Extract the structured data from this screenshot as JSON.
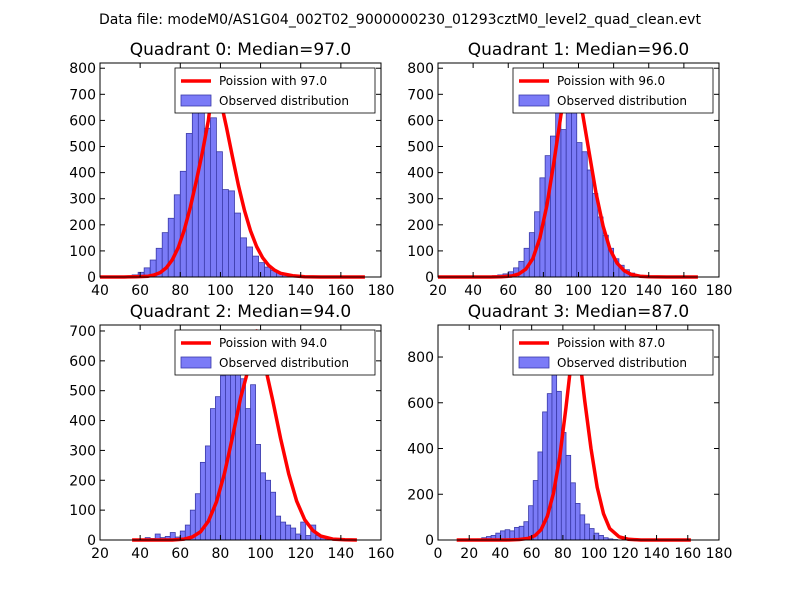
{
  "figure_title": "Data file: modeM0/AS1G04_002T02_9000000230_01293cztM0_level2_quad_clean.evt",
  "colors": {
    "bar_fill": "#7b7bf7",
    "bar_edge": "#3a3aa8",
    "fit_line": "#ff0000",
    "axes": "#000000",
    "background": "#ffffff"
  },
  "chart_data": [
    {
      "type": "bar",
      "title": "Quadrant 0: Median=97.0",
      "median": 97.0,
      "xlim": [
        40,
        180
      ],
      "ylim": [
        0,
        820
      ],
      "xticks": [
        40,
        60,
        80,
        100,
        120,
        140,
        160,
        180
      ],
      "yticks": [
        0,
        100,
        200,
        300,
        400,
        500,
        600,
        700,
        800
      ],
      "legend_position": "top-right",
      "legend": {
        "line": "Poission with 97.0",
        "bars": "Observed distribution"
      },
      "bars": {
        "bin_start": 50,
        "bin_width": 3,
        "values": [
          2,
          4,
          8,
          18,
          35,
          65,
          110,
          170,
          225,
          315,
          405,
          550,
          640,
          705,
          570,
          610,
          480,
          335,
          330,
          245,
          150,
          115,
          80,
          55,
          38,
          25,
          15,
          8,
          4,
          2
        ]
      },
      "fit_line": {
        "x": [
          40,
          46,
          52,
          58,
          64,
          67,
          70,
          73,
          76,
          79,
          82,
          85,
          88,
          91,
          94,
          97,
          100,
          103,
          106,
          109,
          112,
          115,
          118,
          121,
          124,
          127,
          130,
          136,
          142,
          150,
          160,
          172
        ],
        "y": [
          0,
          0,
          0,
          1,
          3,
          8,
          17,
          35,
          66,
          113,
          181,
          267,
          368,
          478,
          601,
          790,
          680,
          575,
          460,
          350,
          255,
          177,
          117,
          74,
          45,
          26,
          14,
          5,
          1,
          0,
          0,
          0
        ]
      }
    },
    {
      "type": "bar",
      "title": "Quadrant 1: Median=96.0",
      "median": 96.0,
      "xlim": [
        20,
        180
      ],
      "ylim": [
        0,
        820
      ],
      "xticks": [
        20,
        40,
        60,
        80,
        100,
        120,
        140,
        160,
        180
      ],
      "yticks": [
        0,
        100,
        200,
        300,
        400,
        500,
        600,
        700,
        800
      ],
      "legend_position": "top-right",
      "legend": {
        "line": "Poission with 96.0",
        "bars": "Observed distribution"
      },
      "bars": {
        "bin_start": 48,
        "bin_width": 3,
        "values": [
          3,
          5,
          8,
          12,
          20,
          35,
          60,
          110,
          170,
          250,
          380,
          465,
          540,
          655,
          565,
          740,
          650,
          515,
          480,
          410,
          320,
          230,
          160,
          110,
          70,
          45,
          28,
          15,
          8,
          4,
          2
        ]
      },
      "fit_line": {
        "x": [
          20,
          30,
          40,
          50,
          56,
          62,
          66,
          70,
          74,
          78,
          82,
          86,
          90,
          93,
          96,
          99,
          102,
          106,
          110,
          114,
          118,
          122,
          126,
          130,
          135,
          140,
          150,
          160,
          168
        ],
        "y": [
          0,
          0,
          0,
          0,
          1,
          4,
          12,
          30,
          70,
          150,
          275,
          440,
          620,
          730,
          785,
          730,
          640,
          480,
          320,
          195,
          105,
          53,
          24,
          10,
          3,
          1,
          0,
          0,
          0
        ]
      }
    },
    {
      "type": "bar",
      "title": "Quadrant 2: Median=94.0",
      "median": 94.0,
      "xlim": [
        20,
        160
      ],
      "ylim": [
        0,
        720
      ],
      "xticks": [
        20,
        40,
        60,
        80,
        100,
        120,
        140,
        160
      ],
      "yticks": [
        0,
        100,
        200,
        300,
        400,
        500,
        600,
        700
      ],
      "legend_position": "top-right",
      "legend": {
        "line": "Poission with 94.0",
        "bars": "Observed distribution"
      },
      "bars": {
        "bin_start": 40,
        "bin_width": 2.5,
        "values": [
          3,
          8,
          5,
          20,
          8,
          12,
          25,
          10,
          30,
          50,
          100,
          155,
          260,
          315,
          440,
          480,
          550,
          560,
          585,
          640,
          540,
          440,
          520,
          320,
          225,
          200,
          160,
          80,
          60,
          50,
          40,
          20,
          60,
          15,
          50,
          15,
          10,
          5
        ]
      },
      "fit_line": {
        "x": [
          36,
          46,
          56,
          62,
          66,
          70,
          74,
          78,
          82,
          86,
          90,
          94,
          98,
          102,
          106,
          110,
          114,
          118,
          122,
          126,
          130,
          136,
          142,
          148
        ],
        "y": [
          0,
          0,
          0,
          3,
          10,
          27,
          63,
          127,
          222,
          345,
          475,
          575,
          700,
          590,
          470,
          340,
          222,
          130,
          68,
          32,
          13,
          3,
          1,
          0
        ]
      }
    },
    {
      "type": "bar",
      "title": "Quadrant 3: Median=87.0",
      "median": 87.0,
      "xlim": [
        0,
        180
      ],
      "ylim": [
        0,
        940
      ],
      "xticks": [
        0,
        20,
        40,
        60,
        80,
        100,
        120,
        140,
        160,
        180
      ],
      "yticks": [
        0,
        200,
        400,
        600,
        800
      ],
      "legend_position": "top-right",
      "legend": {
        "line": "Poission with 87.0",
        "bars": "Observed distribution"
      },
      "bars": {
        "bin_start": 25,
        "bin_width": 3,
        "values": [
          5,
          10,
          15,
          20,
          30,
          40,
          45,
          40,
          55,
          60,
          80,
          150,
          260,
          385,
          560,
          640,
          855,
          650,
          470,
          370,
          250,
          160,
          110,
          70,
          50,
          30,
          20,
          10,
          5,
          2
        ]
      },
      "fit_line": {
        "x": [
          12,
          30,
          44,
          52,
          58,
          62,
          66,
          70,
          74,
          78,
          82,
          85,
          88,
          91,
          94,
          98,
          102,
          106,
          110,
          116,
          122,
          130,
          140,
          150,
          162
        ],
        "y": [
          0,
          0,
          0,
          2,
          7,
          19,
          45,
          103,
          205,
          365,
          580,
          760,
          880,
          780,
          610,
          400,
          230,
          115,
          50,
          14,
          3,
          0,
          0,
          0,
          0
        ]
      }
    }
  ]
}
